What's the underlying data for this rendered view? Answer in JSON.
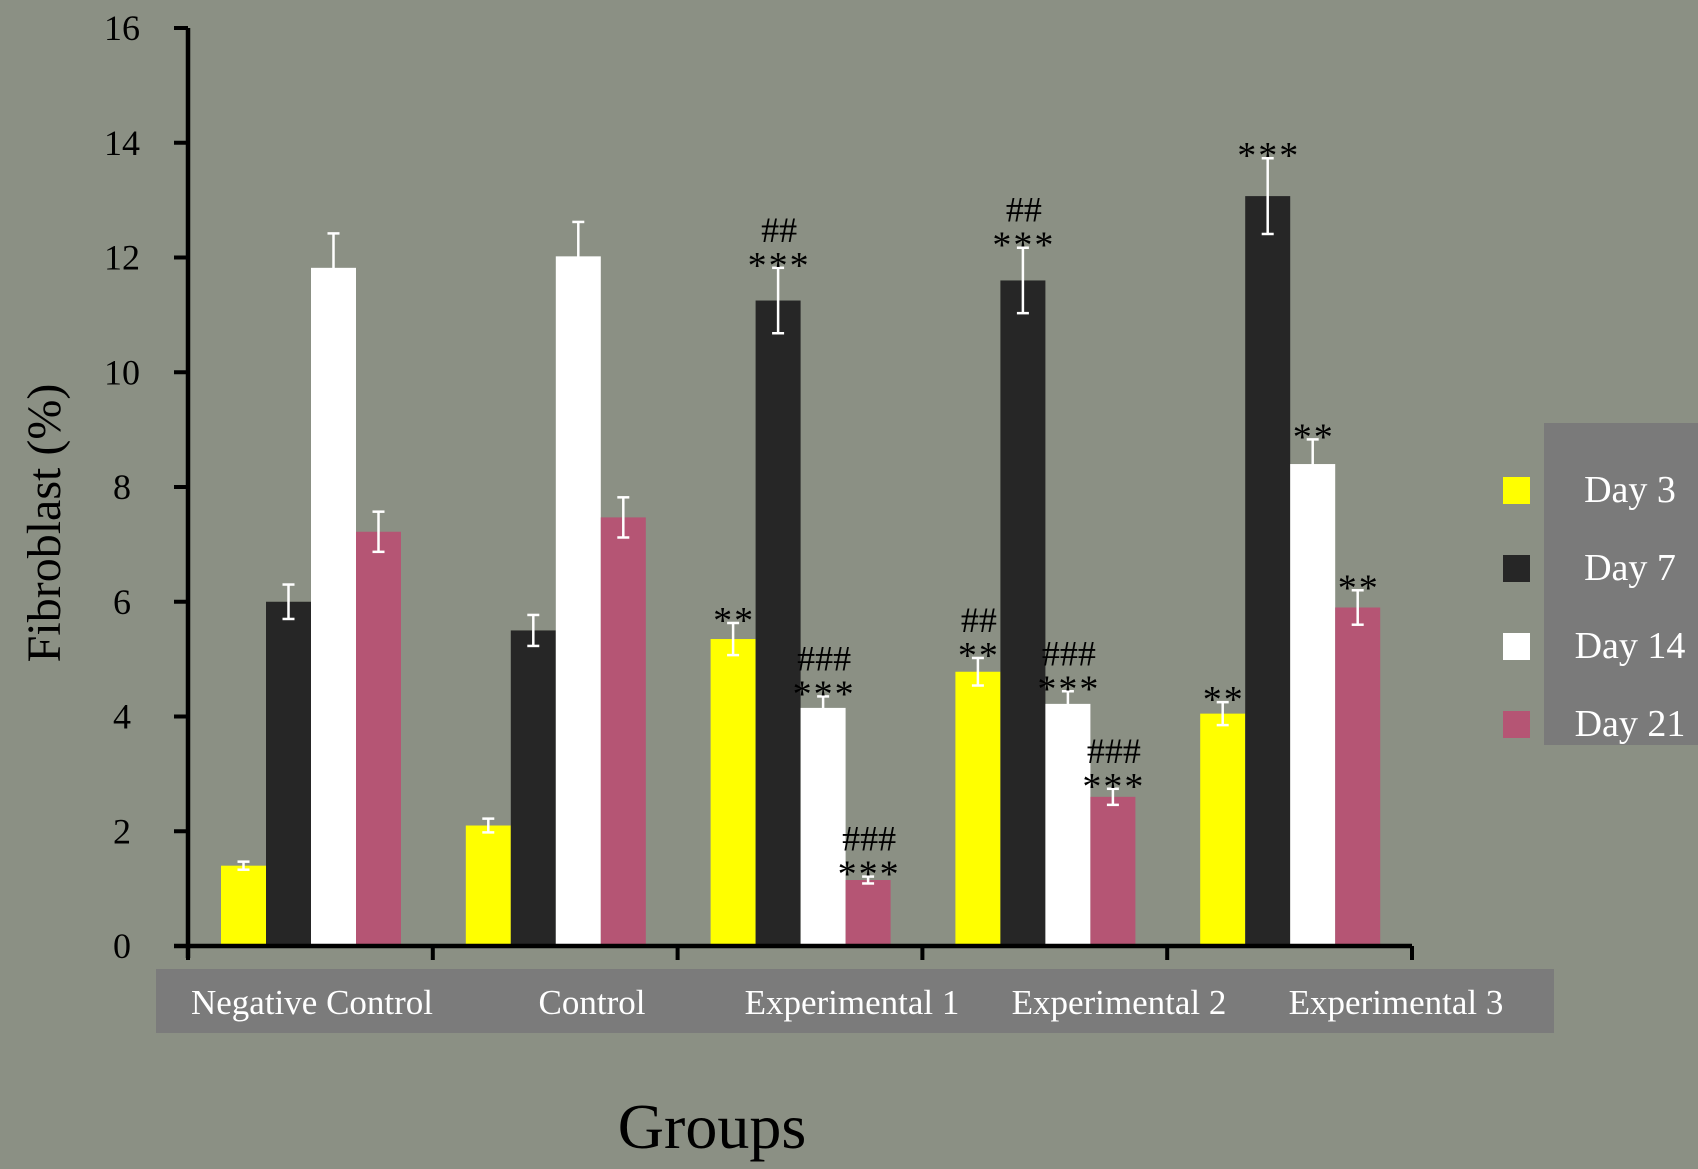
{
  "chart_data": {
    "type": "bar",
    "ylabel": "Fibroblast (%)",
    "xlabel": "Groups",
    "ylim": [
      0,
      16
    ],
    "yticks": [
      0,
      2,
      4,
      6,
      8,
      10,
      12,
      14,
      16
    ],
    "categories": [
      "Negative Control",
      "Control",
      "Experimental 1",
      "Experimental 2",
      "Experimental 3"
    ],
    "legend_position": "right",
    "series": [
      {
        "name": "Day 3",
        "color": "#ffff00",
        "values": [
          1.4,
          2.1,
          5.35,
          4.78,
          4.05
        ],
        "errors": [
          0.07,
          0.12,
          0.28,
          0.24,
          0.2
        ],
        "annotations": [
          "",
          "",
          "**",
          "**",
          "**"
        ],
        "hash_marks": [
          "",
          "",
          "",
          "##",
          ""
        ]
      },
      {
        "name": "Day 7",
        "color": "#262626",
        "values": [
          6.0,
          5.5,
          11.25,
          11.6,
          13.07
        ],
        "errors": [
          0.3,
          0.27,
          0.57,
          0.57,
          0.66
        ],
        "annotations": [
          "",
          "",
          "***",
          "***",
          "***"
        ],
        "hash_marks": [
          "",
          "",
          "##",
          "##",
          ""
        ]
      },
      {
        "name": "Day 14",
        "color": "#ffffff",
        "values": [
          11.82,
          12.02,
          4.15,
          4.22,
          8.4
        ],
        "errors": [
          0.6,
          0.6,
          0.2,
          0.22,
          0.43
        ],
        "annotations": [
          "",
          "",
          "***",
          "***",
          "**"
        ],
        "hash_marks": [
          "",
          "",
          "###",
          "###",
          ""
        ]
      },
      {
        "name": "Day 21",
        "color": "#b55574",
        "values": [
          7.22,
          7.47,
          1.15,
          2.6,
          5.9
        ],
        "errors": [
          0.35,
          0.35,
          0.06,
          0.14,
          0.3
        ],
        "annotations": [
          "",
          "",
          "***",
          "***",
          "**"
        ],
        "hash_marks": [
          "",
          "",
          "###",
          "###",
          ""
        ]
      }
    ]
  }
}
